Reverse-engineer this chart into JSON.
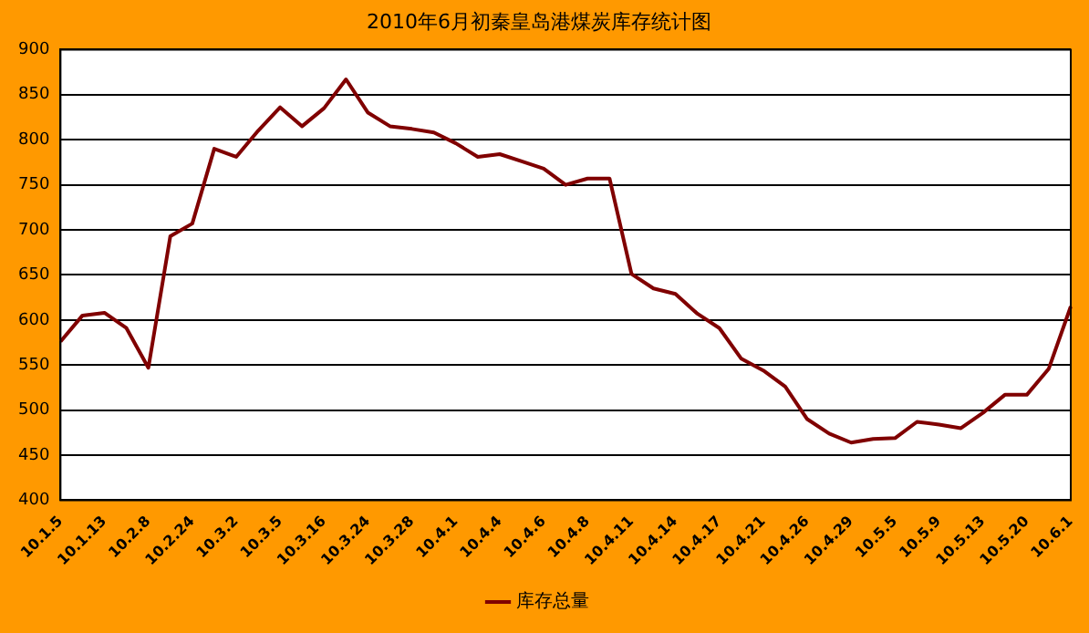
{
  "chart_data": {
    "type": "line",
    "title": "2010年6月初秦皇岛港煤炭库存统计图",
    "categories": [
      "10.1.5",
      null,
      "10.1.13",
      null,
      "10.2.8",
      null,
      "10.2.24",
      null,
      "10.3.2",
      null,
      "10.3.5",
      null,
      "10.3.16",
      null,
      "10.3.24",
      null,
      "10.3.28",
      null,
      "10.4.1",
      null,
      "10.4.4",
      null,
      "10.4.6",
      null,
      "10.4.8",
      null,
      "10.4.11",
      null,
      "10.4.14",
      null,
      "10.4.17",
      null,
      "10.4.21",
      null,
      "10.4.26",
      null,
      "10.4.29",
      null,
      "10.5.5",
      null,
      "10.5.9",
      null,
      "10.5.13",
      null,
      "10.5.20",
      null,
      "10.6.1"
    ],
    "series": [
      {
        "name": "库存总量",
        "color": "#800000",
        "values": [
          576,
          605,
          608,
          591,
          547,
          693,
          707,
          790,
          781,
          810,
          836,
          815,
          835,
          867,
          830,
          815,
          812,
          808,
          796,
          781,
          784,
          776,
          768,
          750,
          757,
          757,
          651,
          635,
          629,
          607,
          591,
          557,
          544,
          526,
          490,
          474,
          464,
          468,
          469,
          487,
          484,
          480,
          497,
          517,
          517,
          546,
          615
        ]
      }
    ],
    "ylim": [
      400,
      900
    ],
    "yticks": [
      400,
      450,
      500,
      550,
      600,
      650,
      700,
      750,
      800,
      850,
      900
    ],
    "grid": "y",
    "legend": "bottom",
    "marker": "none",
    "line_style": "solid"
  }
}
